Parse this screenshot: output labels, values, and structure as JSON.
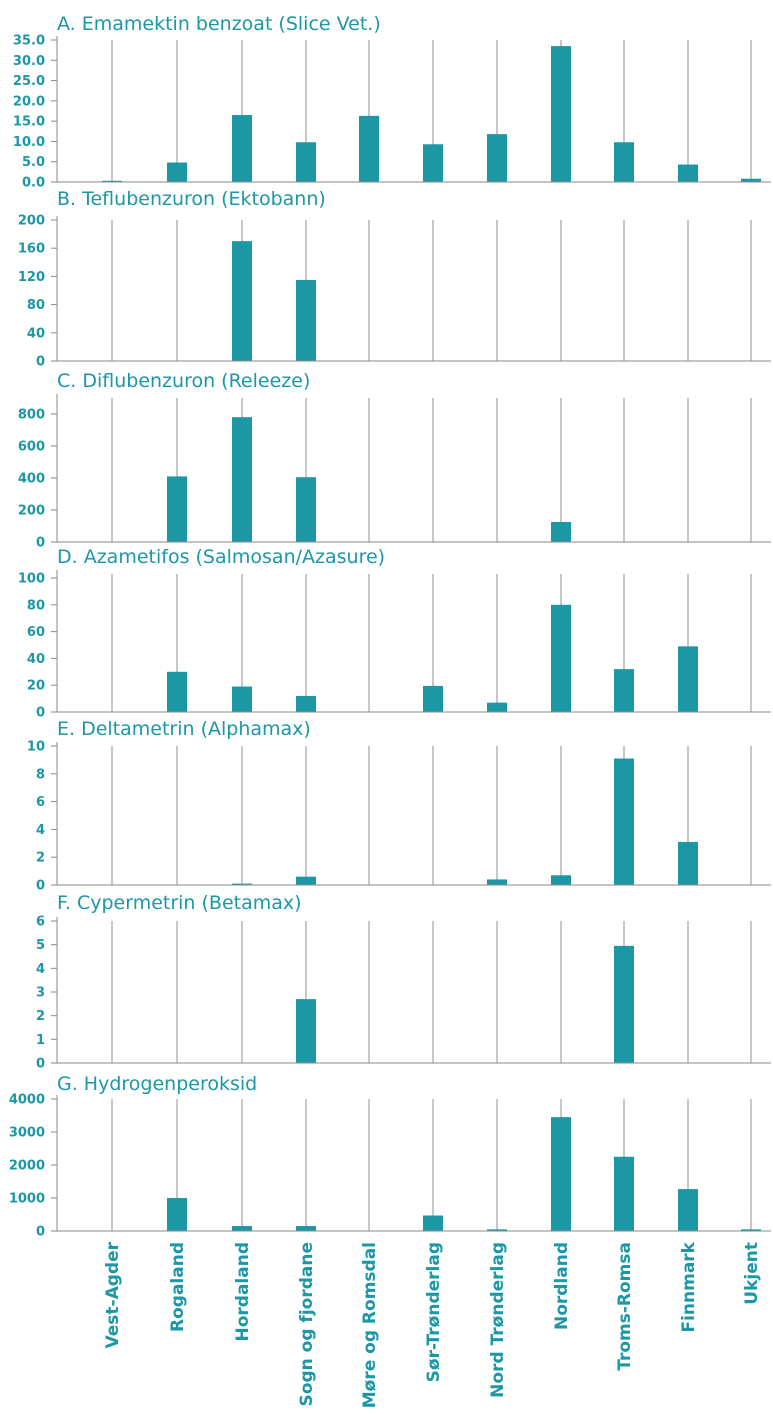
{
  "chart_data": [
    {
      "type": "bar",
      "title": "A. Emamektin benzoat (Slice Vet.)",
      "categories": [
        "Vest-Agder",
        "Rogaland",
        "Hordaland",
        "Sogn og fjordane",
        "Møre og Romsdal",
        "Sør-Trønderlag",
        "Nord Trønderlag",
        "Nordland",
        "Troms-Romsa",
        "Finnmark",
        "Ukjent"
      ],
      "values": [
        0.3,
        4.8,
        16.5,
        9.8,
        16.3,
        9.3,
        11.8,
        33.5,
        9.8,
        4.3,
        0.8
      ],
      "ylim": [
        0,
        35
      ],
      "yticks": [
        "35.0",
        "30.0",
        "25.0",
        "20.0",
        "15.0",
        "10.0",
        "5.0",
        "0.0"
      ],
      "color": "#1b97a6"
    },
    {
      "type": "bar",
      "title": "B. Teflubenzuron (Ektobann)",
      "categories": [
        "Vest-Agder",
        "Rogaland",
        "Hordaland",
        "Sogn og fjordane",
        "Møre og Romsdal",
        "Sør-Trønderlag",
        "Nord Trønderlag",
        "Nordland",
        "Troms-Romsa",
        "Finnmark",
        "Ukjent"
      ],
      "values": [
        0,
        0,
        170,
        115,
        0,
        0,
        0,
        0,
        0,
        0,
        0
      ],
      "ylim": [
        0,
        200
      ],
      "yticks": [
        "200",
        "160",
        "120",
        "80",
        "40",
        "0"
      ],
      "color": "#1b97a6"
    },
    {
      "type": "bar",
      "title": "C. Diflubenzuron (Releeze)",
      "categories": [
        "Vest-Agder",
        "Rogaland",
        "Hordaland",
        "Sogn og fjordane",
        "Møre og Romsdal",
        "Sør-Trønderlag",
        "Nord Trønderlag",
        "Nordland",
        "Troms-Romsa",
        "Finnmark",
        "Ukjent"
      ],
      "values": [
        0,
        410,
        780,
        405,
        0,
        0,
        0,
        125,
        0,
        0,
        0
      ],
      "ylim": [
        0,
        900
      ],
      "yticks": [
        "800",
        "600",
        "400",
        "200",
        "0"
      ],
      "color": "#1b97a6"
    },
    {
      "type": "bar",
      "title": "D. Azametifos (Salmosan/Azasure)",
      "categories": [
        "Vest-Agder",
        "Rogaland",
        "Hordaland",
        "Sogn og fjordane",
        "Møre og Romsdal",
        "Sør-Trønderlag",
        "Nord Trønderlag",
        "Nordland",
        "Troms-Romsa",
        "Finnmark",
        "Ukjent"
      ],
      "values": [
        0,
        30,
        19,
        12,
        0,
        19.5,
        7,
        80,
        32,
        49,
        0
      ],
      "ylim": [
        0,
        103
      ],
      "yticks": [
        "100",
        "80",
        "60",
        "40",
        "20",
        "0"
      ],
      "color": "#1b97a6"
    },
    {
      "type": "bar",
      "title": "E. Deltametrin (Alphamax)",
      "categories": [
        "Vest-Agder",
        "Rogaland",
        "Hordaland",
        "Sogn og fjordane",
        "Møre og Romsdal",
        "Sør-Trønderlag",
        "Nord Trønderlag",
        "Nordland",
        "Troms-Romsa",
        "Finnmark",
        "Ukjent"
      ],
      "values": [
        0,
        0,
        0.1,
        0.6,
        0,
        0,
        0.4,
        0.7,
        9.1,
        3.1,
        0
      ],
      "ylim": [
        0,
        10
      ],
      "yticks": [
        "10",
        "8",
        "6",
        "4",
        "2",
        "0"
      ],
      "color": "#1b97a6"
    },
    {
      "type": "bar",
      "title": "F. Cypermetrin (Betamax)",
      "categories": [
        "Vest-Agder",
        "Rogaland",
        "Hordaland",
        "Sogn og fjordane",
        "Møre og Romsdal",
        "Sør-Trønderlag",
        "Nord Trønderlag",
        "Nordland",
        "Troms-Romsa",
        "Finnmark",
        "Ukjent"
      ],
      "values": [
        0,
        0,
        0,
        2.7,
        0,
        0,
        0,
        0,
        4.95,
        0,
        0
      ],
      "ylim": [
        0,
        6
      ],
      "yticks": [
        "6",
        "5",
        "4",
        "3",
        "2",
        "1",
        "0"
      ],
      "color": "#1b97a6"
    },
    {
      "type": "bar",
      "title": "G. Hydrogenperoksid",
      "categories": [
        "Vest-Agder",
        "Rogaland",
        "Hordaland",
        "Sogn og fjordane",
        "Møre og Romsdal",
        "Sør-Trønderlag",
        "Nord Trønderlag",
        "Nordland",
        "Troms-Romsa",
        "Finnmark",
        "Ukjent"
      ],
      "values": [
        0,
        1000,
        150,
        150,
        0,
        470,
        50,
        3450,
        2250,
        1270,
        50
      ],
      "ylim": [
        0,
        4000
      ],
      "yticks": [
        "4000",
        "3000",
        "2000",
        "1000",
        "0"
      ],
      "color": "#1b97a6"
    }
  ],
  "colors": {
    "bar": "#1b97a6",
    "text": "#1b97a6",
    "grid": "#b9b9b9",
    "axis": "#8a8a8a"
  }
}
